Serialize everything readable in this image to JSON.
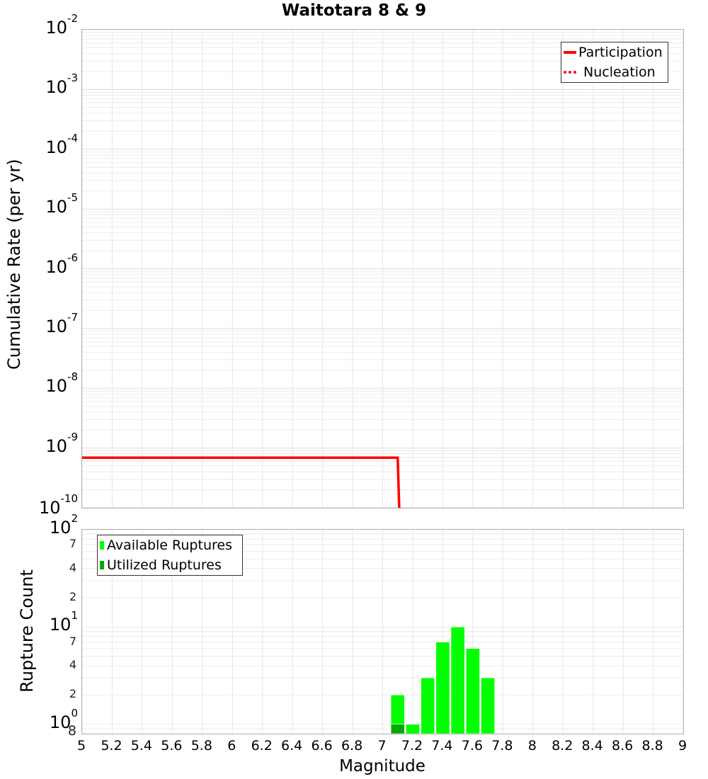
{
  "title": "Waitotara 8 & 9",
  "top_chart": {
    "ylabel": "Cumulative Rate (per yr)",
    "yticks": [
      {
        "base": "10",
        "exp": "-2"
      },
      {
        "base": "10",
        "exp": "-3"
      },
      {
        "base": "10",
        "exp": "-4"
      },
      {
        "base": "10",
        "exp": "-5"
      },
      {
        "base": "10",
        "exp": "-6"
      },
      {
        "base": "10",
        "exp": "-7"
      },
      {
        "base": "10",
        "exp": "-8"
      },
      {
        "base": "10",
        "exp": "-9"
      },
      {
        "base": "10",
        "exp": "-10"
      }
    ],
    "legend": [
      {
        "label": "Participation",
        "style": "solid",
        "color": "#ff0000"
      },
      {
        "label": "Nucleation",
        "style": "dotted",
        "color": "#ff0000"
      }
    ]
  },
  "bottom_chart": {
    "ylabel": "Rupture Count",
    "yticks_major": [
      {
        "base": "10",
        "exp": "2"
      },
      {
        "base": "10",
        "exp": "1"
      },
      {
        "base": "10",
        "exp": "0"
      }
    ],
    "yticks_minor": [
      "7",
      "4",
      "2",
      "7",
      "4",
      "2"
    ],
    "ytick_bottom": "8",
    "legend": [
      {
        "label": "Available Ruptures",
        "color": "#00ff00"
      },
      {
        "label": "Utilized Ruptures",
        "color": "#00aa00"
      }
    ]
  },
  "xaxis": {
    "label": "Magnitude",
    "ticks": [
      "5",
      "5.2",
      "5.4",
      "5.6",
      "5.8",
      "6",
      "6.2",
      "6.4",
      "6.6",
      "6.8",
      "7",
      "7.2",
      "7.4",
      "7.6",
      "7.8",
      "8",
      "8.2",
      "8.4",
      "8.6",
      "8.8",
      "9"
    ]
  },
  "chart_data": [
    {
      "type": "line",
      "title": "Waitotara 8 & 9",
      "xlabel": "Magnitude",
      "ylabel": "Cumulative Rate (per yr)",
      "yscale": "log",
      "xlim": [
        5,
        9
      ],
      "ylim": [
        1e-10,
        0.01
      ],
      "grid": true,
      "legend_position": "top-right",
      "series": [
        {
          "name": "Participation",
          "style": "solid",
          "color": "#ff0000",
          "x": [
            5.0,
            7.1,
            7.11
          ],
          "y": [
            6.9e-10,
            6.9e-10,
            1e-10
          ]
        },
        {
          "name": "Nucleation",
          "style": "dotted",
          "color": "#ff0000",
          "x": [
            5.0,
            7.1,
            7.11
          ],
          "y": [
            6.9e-10,
            6.9e-10,
            1e-10
          ]
        }
      ]
    },
    {
      "type": "bar",
      "xlabel": "Magnitude",
      "ylabel": "Rupture Count",
      "yscale": "log",
      "xlim": [
        5,
        9
      ],
      "ylim": [
        0.8,
        100
      ],
      "grid": true,
      "legend_position": "top-left",
      "categories": [
        7.1,
        7.2,
        7.3,
        7.4,
        7.5,
        7.6,
        7.7
      ],
      "series": [
        {
          "name": "Available Ruptures",
          "color": "#00ff00",
          "values": [
            2,
            1,
            3,
            7,
            10,
            6,
            3
          ]
        },
        {
          "name": "Utilized Ruptures",
          "color": "#00aa00",
          "values": [
            1,
            0,
            0,
            0,
            0,
            0,
            0
          ]
        }
      ]
    }
  ]
}
